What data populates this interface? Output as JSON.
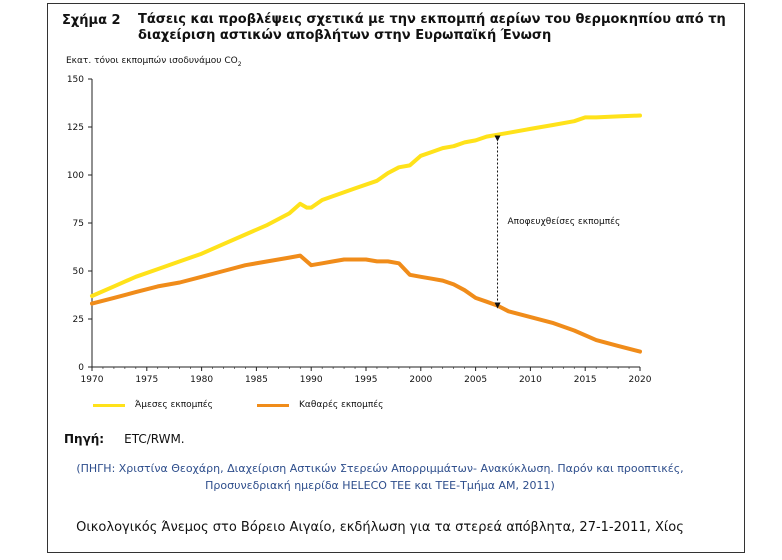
{
  "figure_label": "Σχήμα 2",
  "chart_data": {
    "type": "line",
    "title": "Τάσεις και προβλέψεις σχετικά με την εκπομπή αερίων του θερμοκηπίου από τη διαχείριση αστικών αποβλήτων στην Ευρωπαϊκή Ένωση",
    "ylabel_main": "Εκατ. τόνοι εκπομπών ισοδυνάμου CO",
    "ylabel_sub": "2",
    "xlabel": "",
    "xlim": [
      1970,
      2020
    ],
    "ylim": [
      0,
      150
    ],
    "xticks": [
      1970,
      1975,
      1980,
      1985,
      1990,
      1995,
      2000,
      2005,
      2010,
      2015,
      2020
    ],
    "yticks": [
      0,
      25,
      50,
      75,
      100,
      125,
      150
    ],
    "series": [
      {
        "name": "Άμεσες εκπομπές",
        "color": "#ffe21a",
        "points": [
          [
            1970,
            37
          ],
          [
            1972,
            42
          ],
          [
            1974,
            47
          ],
          [
            1976,
            51
          ],
          [
            1978,
            55
          ],
          [
            1980,
            59
          ],
          [
            1982,
            64
          ],
          [
            1984,
            69
          ],
          [
            1986,
            74
          ],
          [
            1988,
            80
          ],
          [
            1989,
            85
          ],
          [
            1989.6,
            83
          ],
          [
            1990,
            83
          ],
          [
            1991,
            87
          ],
          [
            1992,
            89
          ],
          [
            1994,
            93
          ],
          [
            1996,
            97
          ],
          [
            1997,
            101
          ],
          [
            1998,
            104
          ],
          [
            1999,
            105
          ],
          [
            2000,
            110
          ],
          [
            2001,
            112
          ],
          [
            2002,
            114
          ],
          [
            2003,
            115
          ],
          [
            2004,
            117
          ],
          [
            2005,
            118
          ],
          [
            2006,
            120
          ],
          [
            2008,
            122
          ],
          [
            2010,
            124
          ],
          [
            2012,
            126
          ],
          [
            2014,
            128
          ],
          [
            2015,
            130
          ],
          [
            2016,
            130
          ],
          [
            2018,
            130.5
          ],
          [
            2020,
            131
          ]
        ]
      },
      {
        "name": "Καθαρές εκπομπές",
        "color": "#f08c1a",
        "points": [
          [
            1970,
            33
          ],
          [
            1972,
            36
          ],
          [
            1974,
            39
          ],
          [
            1976,
            42
          ],
          [
            1978,
            44
          ],
          [
            1980,
            47
          ],
          [
            1982,
            50
          ],
          [
            1984,
            53
          ],
          [
            1986,
            55
          ],
          [
            1988,
            57
          ],
          [
            1989,
            58
          ],
          [
            1989.6,
            55
          ],
          [
            1990,
            53
          ],
          [
            1991,
            54
          ],
          [
            1992,
            55
          ],
          [
            1993,
            56
          ],
          [
            1994,
            56
          ],
          [
            1995,
            56
          ],
          [
            1996,
            55
          ],
          [
            1997,
            55
          ],
          [
            1998,
            54
          ],
          [
            1999,
            48
          ],
          [
            2000,
            47
          ],
          [
            2001,
            46
          ],
          [
            2002,
            45
          ],
          [
            2003,
            43
          ],
          [
            2004,
            40
          ],
          [
            2005,
            36
          ],
          [
            2006,
            34
          ],
          [
            2007,
            32
          ],
          [
            2008,
            29
          ],
          [
            2010,
            26
          ],
          [
            2012,
            23
          ],
          [
            2014,
            19
          ],
          [
            2016,
            14
          ],
          [
            2018,
            11
          ],
          [
            2020,
            8
          ]
        ]
      }
    ],
    "annotation": {
      "text": "Αποφευχθείσες εκπομπές",
      "x": 2007,
      "y_top": 119,
      "y_bottom": 32
    }
  },
  "source_label": "Πηγή:",
  "source_value": "ETC/RWM.",
  "citation_line1": "(ΠΗΓΗ: Χριστίνα Θεοχάρη, Διαχείριση Αστικών Στερεών Απορριμμάτων- Ανακύκλωση. Παρόν και προοπτικές,",
  "citation_line2": "Προσυνεδριακή ημερίδα HELECO ΤΕΕ και ΤΕΕ-Τμήμα ΑΜ, 2011)",
  "footer": "Οικολογικός Άνεμος στο Βόρειο Αιγαίο, εκδήλωση για τα στερεά απόβλητα, 27-1-2011, Χίος"
}
